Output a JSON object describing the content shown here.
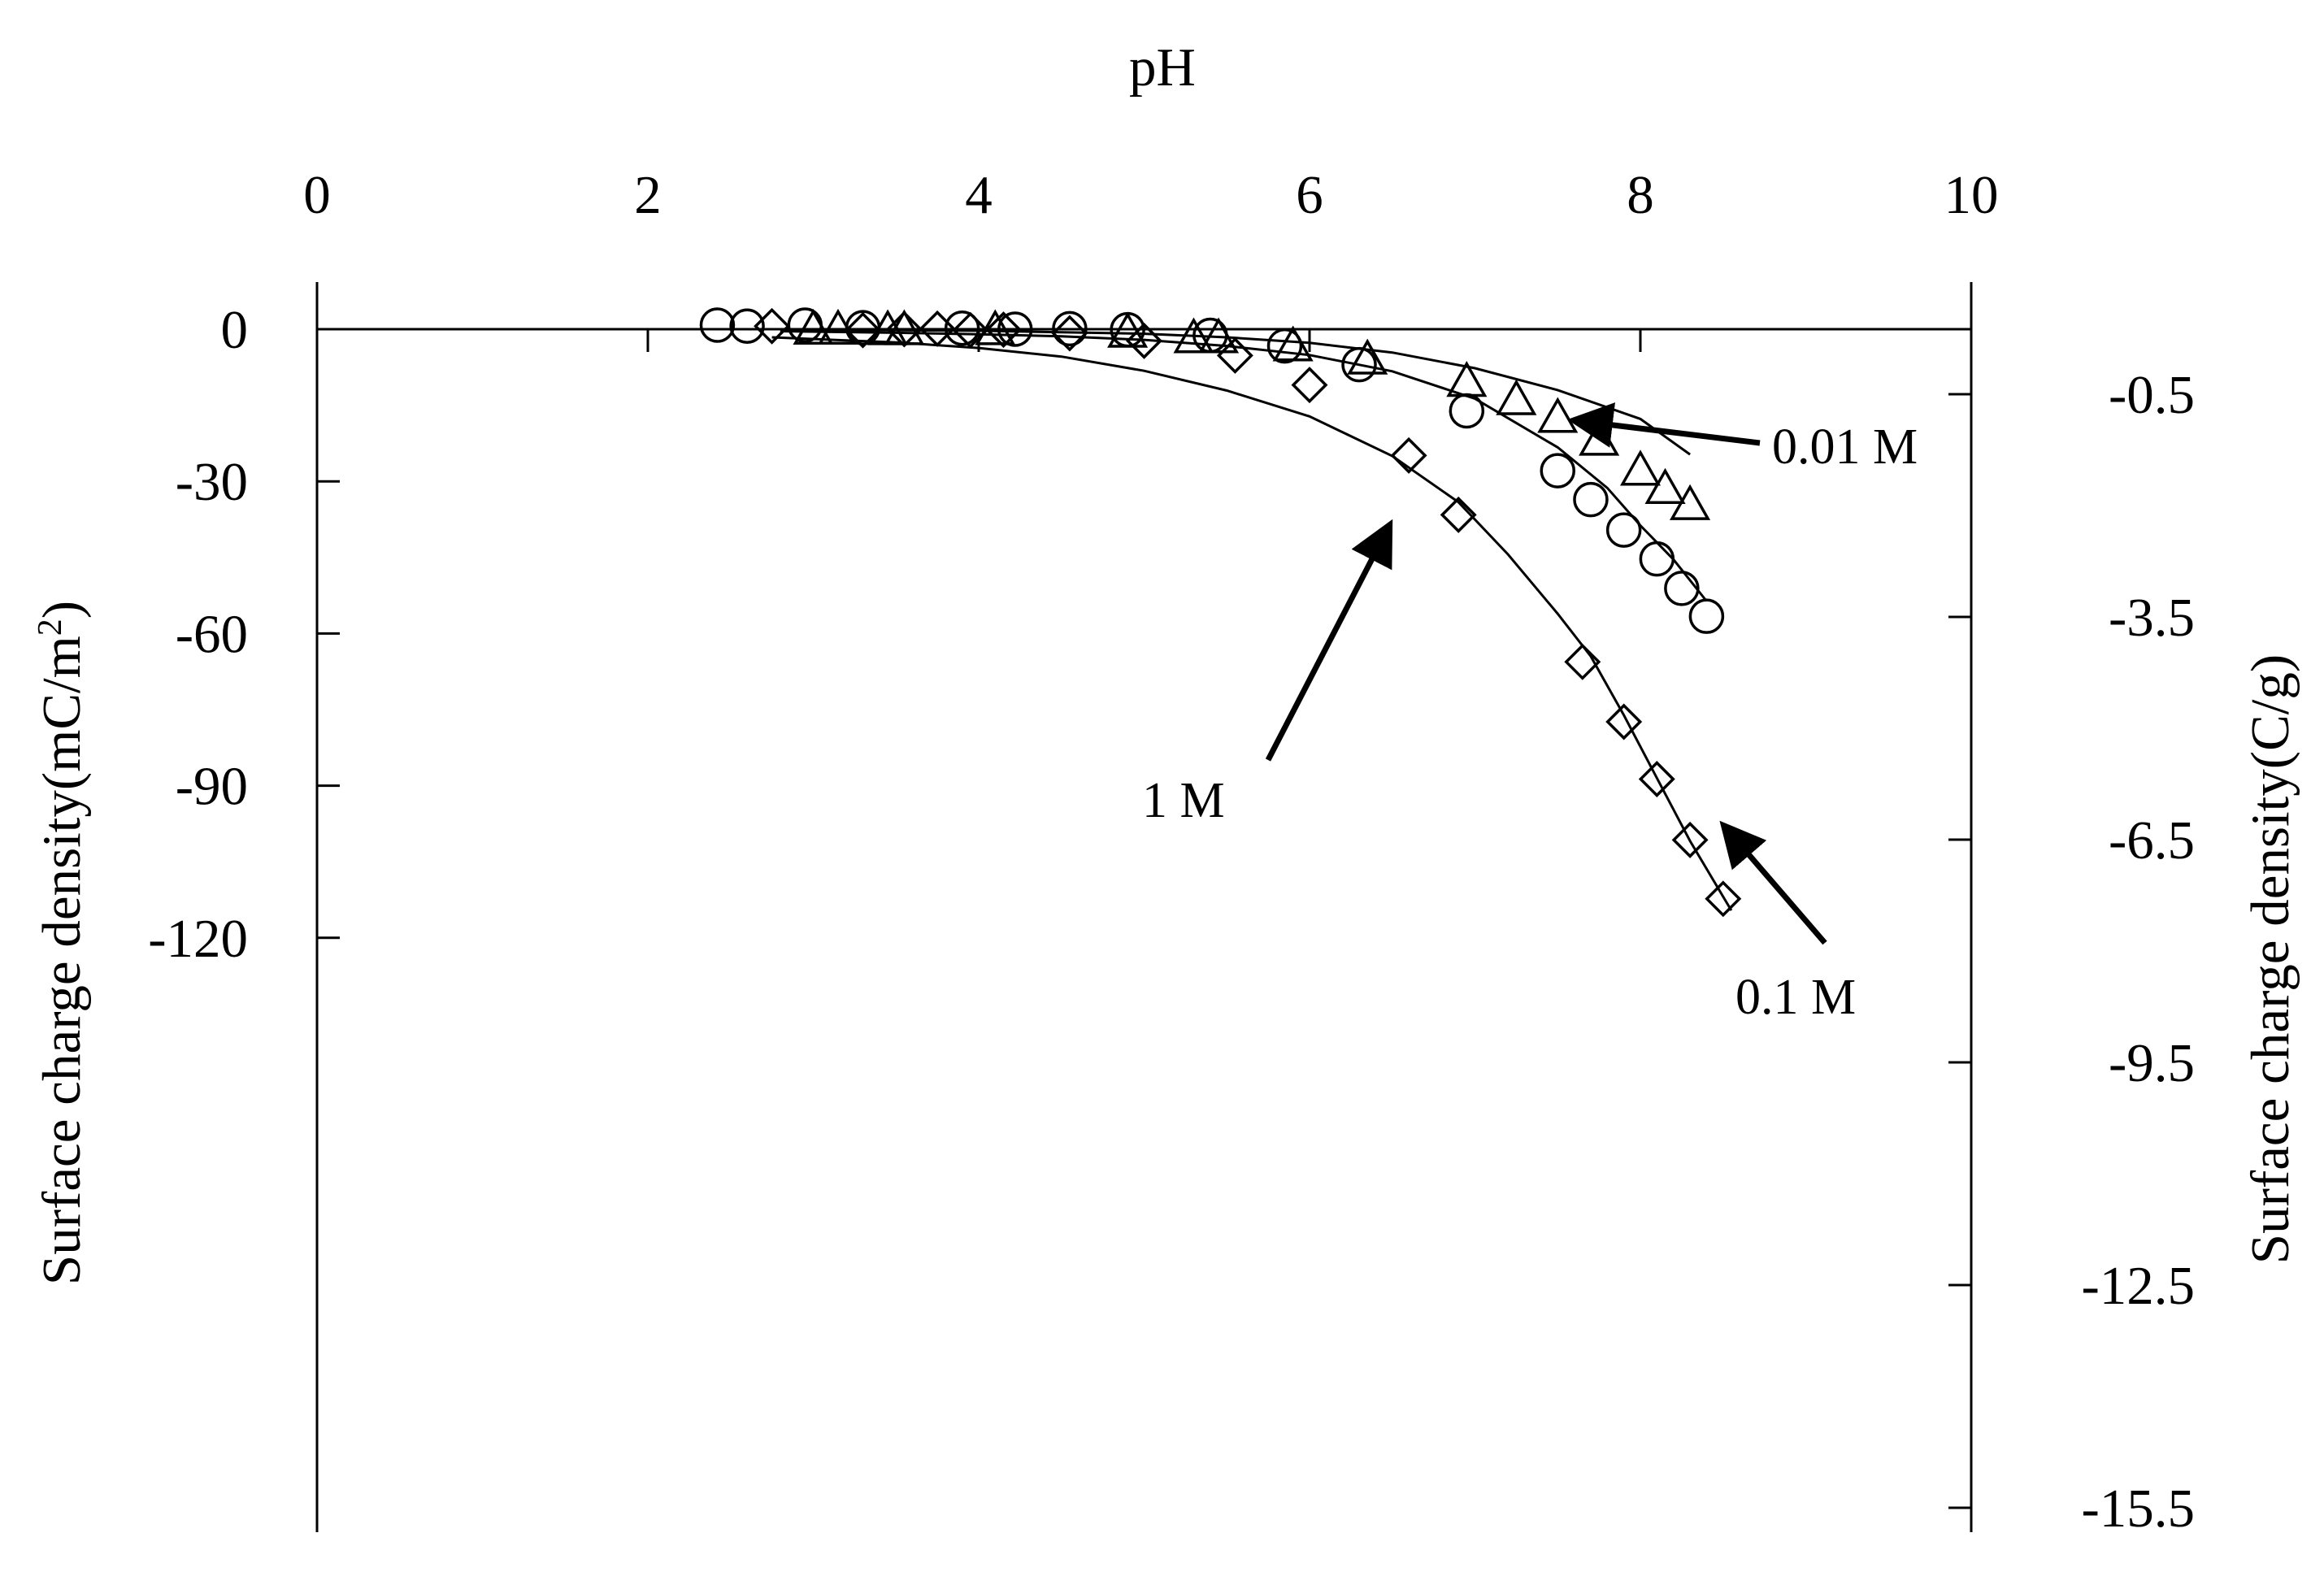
{
  "chart_data": {
    "type": "scatter",
    "x_axis": {
      "label": "pH",
      "position": "top",
      "range": [
        0,
        10
      ],
      "ticks": [
        0,
        2,
        4,
        6,
        8,
        10
      ]
    },
    "y_axis_left": {
      "label": "Surface charge density(mC/m",
      "label_superscript": "2",
      "label_suffix": ")",
      "range": [
        -120,
        5
      ],
      "ticks": [
        0,
        -30,
        -60,
        -90,
        -120
      ],
      "tick_labels": [
        "0",
        "-30",
        "-60",
        "-90",
        "-120"
      ]
    },
    "y_axis_right": {
      "label": "Surface charge density(C/g)",
      "ticks": [
        -0.5,
        -3.5,
        -6.5,
        -9.5,
        -12.5,
        -15.5
      ],
      "tick_labels": [
        "-0.5",
        "-3.5",
        "-6.5",
        "-9.5",
        "-12.5",
        "-15.5"
      ]
    },
    "grid": false,
    "legend": "none",
    "series": [
      {
        "name": "0.01 M",
        "marker": "triangle",
        "points": [
          [
            3.0,
            0.1
          ],
          [
            3.15,
            0.1
          ],
          [
            3.45,
            0.0
          ],
          [
            3.55,
            0.0
          ],
          [
            4.1,
            0.0
          ],
          [
            4.9,
            -0.5
          ],
          [
            5.3,
            -1.6
          ],
          [
            5.45,
            -1.6
          ],
          [
            5.9,
            -3.2
          ],
          [
            6.35,
            -5.8
          ],
          [
            6.95,
            -10.2
          ],
          [
            7.25,
            -13.8
          ],
          [
            7.5,
            -17.3
          ],
          [
            7.75,
            -21.8
          ],
          [
            8.0,
            -27.7
          ],
          [
            8.15,
            -31.3
          ],
          [
            8.3,
            -34.5
          ]
        ],
        "curve": [
          [
            2.9,
            -0.1
          ],
          [
            4.0,
            -0.3
          ],
          [
            5.0,
            -0.9
          ],
          [
            5.5,
            -1.6
          ],
          [
            6.0,
            -2.7
          ],
          [
            6.5,
            -4.6
          ],
          [
            7.0,
            -7.7
          ],
          [
            7.5,
            -12.0
          ],
          [
            8.0,
            -17.7
          ],
          [
            8.3,
            -24.7
          ]
        ]
      },
      {
        "name": "0.1 M",
        "marker": "circle",
        "points": [
          [
            2.42,
            0.8
          ],
          [
            2.6,
            0.6
          ],
          [
            2.95,
            0.8
          ],
          [
            3.3,
            0.3
          ],
          [
            3.9,
            0.2
          ],
          [
            4.22,
            0.0
          ],
          [
            4.55,
            0.1
          ],
          [
            4.9,
            -0.1
          ],
          [
            5.4,
            -1.2
          ],
          [
            5.85,
            -3.3
          ],
          [
            6.3,
            -7.0
          ],
          [
            6.95,
            -16.1
          ],
          [
            7.5,
            -27.9
          ],
          [
            7.7,
            -33.6
          ],
          [
            7.9,
            -39.6
          ],
          [
            8.1,
            -45.3
          ],
          [
            8.25,
            -51.1
          ],
          [
            8.4,
            -56.6
          ]
        ],
        "curve": [
          [
            2.8,
            -0.4
          ],
          [
            3.5,
            -0.7
          ],
          [
            4.0,
            -1.0
          ],
          [
            4.5,
            -1.4
          ],
          [
            5.0,
            -2.1
          ],
          [
            5.5,
            -3.3
          ],
          [
            6.0,
            -5.1
          ],
          [
            6.5,
            -8.3
          ],
          [
            7.0,
            -13.7
          ],
          [
            7.5,
            -23.3
          ],
          [
            7.8,
            -31.3
          ],
          [
            8.0,
            -38.7
          ],
          [
            8.2,
            -45.4
          ],
          [
            8.4,
            -53.6
          ]
        ]
      },
      {
        "name": "1 M",
        "marker": "diamond",
        "points": [
          [
            2.75,
            0.6
          ],
          [
            3.3,
            -0.2
          ],
          [
            3.55,
            0.0
          ],
          [
            3.75,
            0.1
          ],
          [
            3.95,
            -0.2
          ],
          [
            4.15,
            -0.1
          ],
          [
            4.55,
            -0.8
          ],
          [
            5.0,
            -2.3
          ],
          [
            5.55,
            -5.2
          ],
          [
            6.0,
            -11.0
          ],
          [
            6.6,
            -24.9
          ],
          [
            6.9,
            -36.6
          ],
          [
            7.65,
            -65.6
          ],
          [
            7.9,
            -77.4
          ],
          [
            8.1,
            -88.7
          ],
          [
            8.3,
            -100.7
          ],
          [
            8.5,
            -112.3
          ]
        ],
        "curve": [
          [
            2.75,
            -1.6
          ],
          [
            3.5,
            -2.6
          ],
          [
            4.0,
            -3.7
          ],
          [
            4.5,
            -5.4
          ],
          [
            5.0,
            -8.2
          ],
          [
            5.5,
            -12.1
          ],
          [
            6.0,
            -17.2
          ],
          [
            6.5,
            -25.0
          ],
          [
            6.9,
            -34.1
          ],
          [
            7.2,
            -44.4
          ],
          [
            7.5,
            -56.1
          ],
          [
            7.7,
            -64.5
          ],
          [
            7.9,
            -76.1
          ],
          [
            8.1,
            -88.5
          ],
          [
            8.3,
            -100.9
          ],
          [
            8.55,
            -114.6
          ]
        ]
      }
    ],
    "annotations": [
      {
        "text": "0.01 M",
        "series": "0.01 M"
      },
      {
        "text": "0.1 M",
        "series": "0.1 M"
      },
      {
        "text": "1 M",
        "series": "1 M"
      }
    ]
  }
}
